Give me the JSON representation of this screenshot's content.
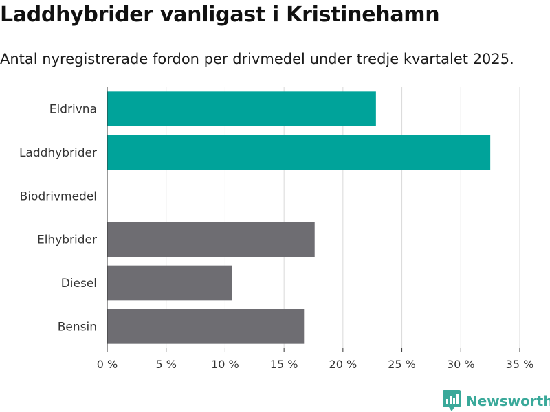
{
  "header": {
    "title": "Laddhybrider vanligast i Kristinehamn",
    "subtitle": "Antal nyregistrerade fordon per drivmedel under tredje kvartalet 2025."
  },
  "brand": {
    "name": "Newsworthy",
    "color": "#3aa99a"
  },
  "colors": {
    "highlight": "#00a39a",
    "other": "#6e6d72",
    "grid": "#d9d9d9",
    "axis": "#333333"
  },
  "chart_data": {
    "type": "bar",
    "orientation": "horizontal",
    "title": "Laddhybrider vanligast i Kristinehamn",
    "subtitle": "Antal nyregistrerade fordon per drivmedel under tredje kvartalet 2025.",
    "categories": [
      "Eldrivna",
      "Laddhybrider",
      "Biodrivmedel",
      "Elhybrider",
      "Diesel",
      "Bensin"
    ],
    "values": [
      22.8,
      32.5,
      0,
      17.6,
      10.6,
      16.7
    ],
    "highlight": [
      true,
      true,
      false,
      false,
      false,
      false
    ],
    "xlim": [
      0,
      35
    ],
    "xticks": [
      0,
      5,
      10,
      15,
      20,
      25,
      30,
      35
    ],
    "tick_labels": [
      "0 %",
      "5 %",
      "10 %",
      "15 %",
      "20 %",
      "25 %",
      "30 %",
      "35 %"
    ],
    "xlabel": "",
    "ylabel": "",
    "grid": true
  }
}
